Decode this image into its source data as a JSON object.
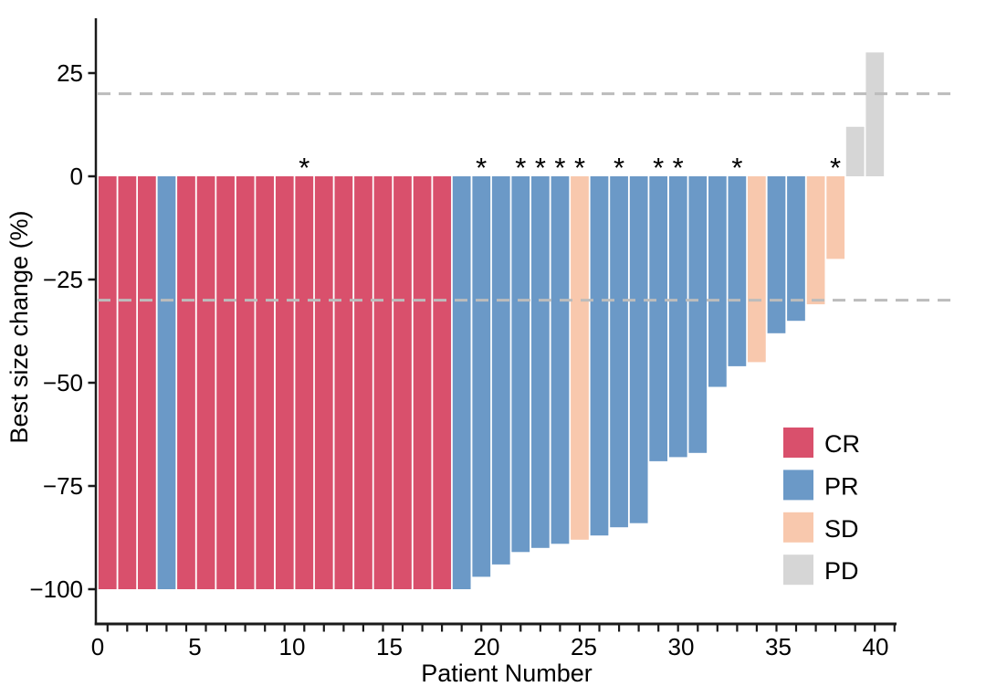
{
  "chart_data": {
    "type": "bar",
    "title": "",
    "xlabel": "Patient Number",
    "ylabel": "Best size change (%)",
    "xlim": [
      0,
      41
    ],
    "ylim": [
      -110,
      35
    ],
    "grid": false,
    "legend_position": "inside-right",
    "x_tick_labels": [
      0,
      5,
      10,
      15,
      20,
      25,
      30,
      35,
      40
    ],
    "y_ticks": [
      {
        "value": 25,
        "label": "25"
      },
      {
        "value": 0,
        "label": "0"
      },
      {
        "value": -25,
        "label": "−25"
      },
      {
        "value": -50,
        "label": "−50"
      },
      {
        "value": -75,
        "label": "−75"
      },
      {
        "value": -100,
        "label": "−100"
      }
    ],
    "reference_lines": {
      "upper": 20,
      "lower": -30,
      "color": "#bcbcbc",
      "style": "dashed"
    },
    "response_colors": {
      "CR": "#d9506c",
      "PR": "#6b99c7",
      "SD": "#f8c8ad",
      "PD": "#d6d6d6"
    },
    "legend": [
      {
        "label": "CR",
        "color": "#d9506c"
      },
      {
        "label": "PR",
        "color": "#6b99c7"
      },
      {
        "label": "SD",
        "color": "#f8c8ad"
      },
      {
        "label": "PD",
        "color": "#d6d6d6"
      }
    ],
    "annotation_symbol": "*",
    "patients": [
      {
        "n": 1,
        "value": -100,
        "response": "CR",
        "asterisk": false
      },
      {
        "n": 2,
        "value": -100,
        "response": "CR",
        "asterisk": false
      },
      {
        "n": 3,
        "value": -100,
        "response": "CR",
        "asterisk": false
      },
      {
        "n": 4,
        "value": -100,
        "response": "PR",
        "asterisk": false
      },
      {
        "n": 5,
        "value": -100,
        "response": "CR",
        "asterisk": false
      },
      {
        "n": 6,
        "value": -100,
        "response": "CR",
        "asterisk": false
      },
      {
        "n": 7,
        "value": -100,
        "response": "CR",
        "asterisk": false
      },
      {
        "n": 8,
        "value": -100,
        "response": "CR",
        "asterisk": false
      },
      {
        "n": 9,
        "value": -100,
        "response": "CR",
        "asterisk": false
      },
      {
        "n": 10,
        "value": -100,
        "response": "CR",
        "asterisk": false
      },
      {
        "n": 11,
        "value": -100,
        "response": "CR",
        "asterisk": true
      },
      {
        "n": 12,
        "value": -100,
        "response": "CR",
        "asterisk": false
      },
      {
        "n": 13,
        "value": -100,
        "response": "CR",
        "asterisk": false
      },
      {
        "n": 14,
        "value": -100,
        "response": "CR",
        "asterisk": false
      },
      {
        "n": 15,
        "value": -100,
        "response": "CR",
        "asterisk": false
      },
      {
        "n": 16,
        "value": -100,
        "response": "CR",
        "asterisk": false
      },
      {
        "n": 17,
        "value": -100,
        "response": "CR",
        "asterisk": false
      },
      {
        "n": 18,
        "value": -100,
        "response": "CR",
        "asterisk": false
      },
      {
        "n": 19,
        "value": -100,
        "response": "PR",
        "asterisk": false
      },
      {
        "n": 20,
        "value": -97,
        "response": "PR",
        "asterisk": true
      },
      {
        "n": 21,
        "value": -94,
        "response": "PR",
        "asterisk": false
      },
      {
        "n": 22,
        "value": -91,
        "response": "PR",
        "asterisk": true
      },
      {
        "n": 23,
        "value": -90,
        "response": "PR",
        "asterisk": true
      },
      {
        "n": 24,
        "value": -89,
        "response": "PR",
        "asterisk": true
      },
      {
        "n": 25,
        "value": -88,
        "response": "SD",
        "asterisk": true
      },
      {
        "n": 26,
        "value": -87,
        "response": "PR",
        "asterisk": false
      },
      {
        "n": 27,
        "value": -85,
        "response": "PR",
        "asterisk": true
      },
      {
        "n": 28,
        "value": -84,
        "response": "PR",
        "asterisk": false
      },
      {
        "n": 29,
        "value": -69,
        "response": "PR",
        "asterisk": true
      },
      {
        "n": 30,
        "value": -68,
        "response": "PR",
        "asterisk": true
      },
      {
        "n": 31,
        "value": -67,
        "response": "PR",
        "asterisk": false
      },
      {
        "n": 32,
        "value": -51,
        "response": "PR",
        "asterisk": false
      },
      {
        "n": 33,
        "value": -46,
        "response": "PR",
        "asterisk": true
      },
      {
        "n": 34,
        "value": -45,
        "response": "SD",
        "asterisk": false
      },
      {
        "n": 35,
        "value": -38,
        "response": "PR",
        "asterisk": false
      },
      {
        "n": 36,
        "value": -35,
        "response": "PR",
        "asterisk": false
      },
      {
        "n": 37,
        "value": -31,
        "response": "SD",
        "asterisk": false
      },
      {
        "n": 38,
        "value": -20,
        "response": "SD",
        "asterisk": true
      },
      {
        "n": 39,
        "value": 12,
        "response": "PD",
        "asterisk": false
      },
      {
        "n": 40,
        "value": 30,
        "response": "PD",
        "asterisk": false
      }
    ]
  }
}
